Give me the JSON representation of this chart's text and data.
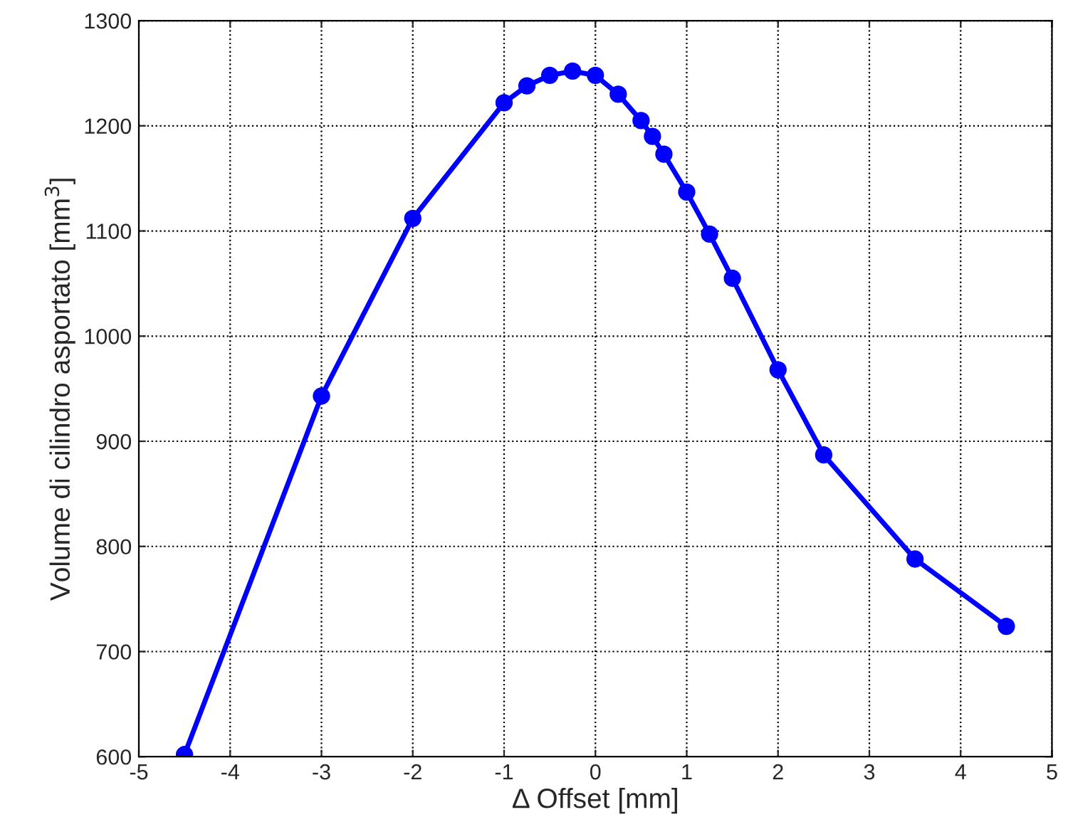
{
  "chart_data": {
    "type": "line",
    "xlabel": "Δ Offset [mm]",
    "ylabel": "Volume di cilindro asportato [mm$^{3}$]",
    "x": [
      -4.5,
      -3,
      -2,
      -1,
      -0.75,
      -0.5,
      -0.25,
      0,
      0.25,
      0.5,
      0.625,
      0.75,
      1,
      1.25,
      1.5,
      2,
      2.5,
      3.5,
      4.5
    ],
    "series": [
      {
        "color": "#0000ff",
        "values": [
          602,
          943,
          1112,
          1222,
          1238,
          1248,
          1252,
          1248,
          1230,
          1205,
          1190,
          1173,
          1137,
          1097,
          1055,
          968,
          887,
          788,
          724
        ]
      }
    ],
    "xlim": [
      -5,
      5
    ],
    "xticks": [
      -5,
      -4,
      -3,
      -2,
      -1,
      0,
      1,
      2,
      3,
      4,
      5
    ],
    "ylim": [
      600,
      1300
    ],
    "yticks": [
      600,
      700,
      800,
      900,
      1000,
      1100,
      1200,
      1300
    ],
    "grid": true,
    "marker": "circle",
    "line_style": "solid"
  }
}
